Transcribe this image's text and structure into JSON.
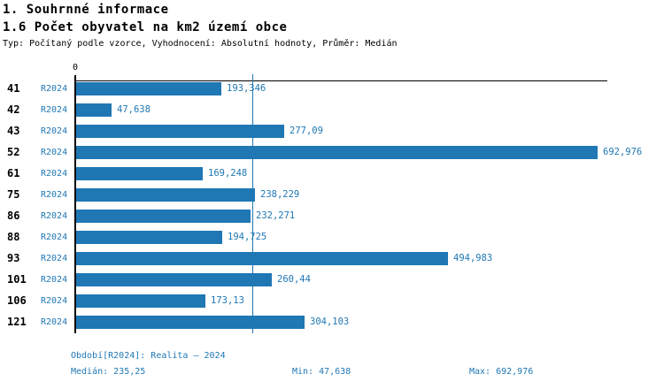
{
  "header": {
    "title": "1. Souhrnné informace",
    "subtitle": "1.6 Počet obyvatel na km2 území obce",
    "meta": "Typ: Počítaný podle vzorce, Vyhodnocení: Absolutní hodnoty, Průměr: Medián"
  },
  "chart_data": {
    "type": "bar",
    "orientation": "horizontal",
    "title": "1.6 Počet obyvatel na km2 území obce",
    "series_label": "R2024",
    "categories": [
      "41",
      "42",
      "43",
      "52",
      "61",
      "75",
      "86",
      "88",
      "93",
      "101",
      "106",
      "121"
    ],
    "values": [
      193.346,
      47.638,
      277.09,
      692.976,
      169.248,
      238.229,
      232.271,
      194.725,
      494.983,
      260.44,
      173.13,
      304.103
    ],
    "value_labels": [
      "193,346",
      "47,638",
      "277,09",
      "692,976",
      "169,248",
      "238,229",
      "232,271",
      "194,725",
      "494,983",
      "260,44",
      "173,13",
      "304,103"
    ],
    "axis": {
      "origin_label": "0",
      "xmin": 0,
      "xmax_render": 705
    },
    "median_line": {
      "value": 235.25,
      "label": "235,25"
    },
    "stats": {
      "median": "235,25",
      "min": "47,638",
      "max": "692,976"
    },
    "grid": false,
    "legend": "none",
    "bar_color": "#1f77b4"
  },
  "footer": {
    "period": "Období[R2024]: Realita – 2024",
    "median": "Medián: 235,25",
    "min": "Min: 47,638",
    "max": "Max: 692,976"
  },
  "colors": {
    "accent": "#1f77b4",
    "text": "#000000",
    "background": "#ffffff"
  }
}
